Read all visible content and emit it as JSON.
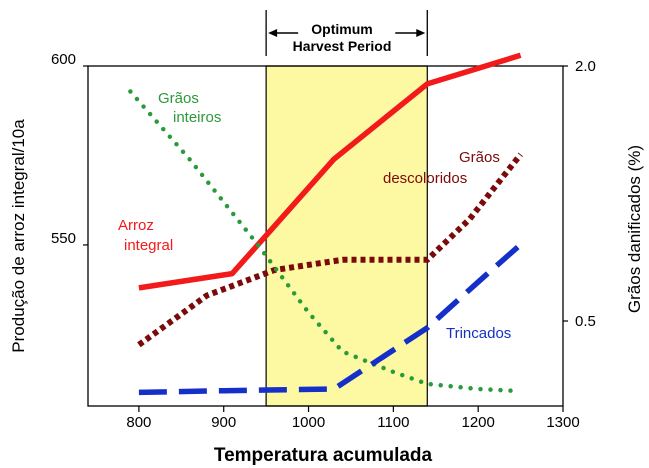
{
  "chart_data": {
    "type": "line",
    "title": "",
    "xlabel": "Temperatura acumulada",
    "ylabel_left": "Produção de arroz integral/10a",
    "ylabel_right": "Grãos danificados (%)",
    "xlim": [
      740,
      1300
    ],
    "ylim_left": [
      505,
      600
    ],
    "ylim_right": [
      0,
      2.0
    ],
    "x_ticks": [
      800,
      900,
      1000,
      1100,
      1200,
      1300
    ],
    "y_left_ticks": [
      {
        "value": 600,
        "label": "600"
      },
      {
        "value": 550,
        "label": "550"
      }
    ],
    "y_right_ticks": [
      {
        "value": 2.0,
        "label": "2.0"
      },
      {
        "value": 0.5,
        "label": "0.5"
      }
    ],
    "grid": false,
    "legend": "none",
    "optimum_period": {
      "label_line1": "Optimum",
      "label_line2": "Harvest Period",
      "x_range": [
        950,
        1140
      ],
      "color": "#fdf9a2"
    },
    "series": [
      {
        "name": "Arroz integral",
        "label_line1": "Arroz",
        "label_line2": "integral",
        "axis": "left",
        "color": "#f21a1a",
        "style": "solid",
        "x": [
          800,
          910,
          1030,
          1140,
          1250
        ],
        "y": [
          538,
          542,
          574,
          595,
          603
        ]
      },
      {
        "name": "Grãos descoloridos",
        "label_line1": "Grãos",
        "label_line2": "descoloridos",
        "axis": "right",
        "color": "#7b0a0a",
        "style": "dotted-thick",
        "x": [
          800,
          880,
          960,
          1040,
          1140,
          1190,
          1250
        ],
        "y": [
          0.36,
          0.65,
          0.8,
          0.86,
          0.86,
          1.1,
          1.48
        ]
      },
      {
        "name": "Grãos inteiros",
        "label_line1": "Grãos",
        "label_line2": "inteiros",
        "axis": "right",
        "color": "#2a9a3a",
        "style": "dotted",
        "x": [
          790,
          860,
          940,
          1000,
          1040,
          1100,
          1140,
          1200,
          1240
        ],
        "y": [
          1.85,
          1.45,
          0.95,
          0.55,
          0.32,
          0.2,
          0.13,
          0.1,
          0.09
        ]
      },
      {
        "name": "Trincados",
        "label_line1": "Trincados",
        "axis": "right",
        "color": "#1530c8",
        "style": "dashed",
        "x": [
          800,
          900,
          1030,
          1140,
          1200,
          1250
        ],
        "y": [
          0.08,
          0.09,
          0.1,
          0.46,
          0.73,
          0.95
        ]
      }
    ]
  }
}
